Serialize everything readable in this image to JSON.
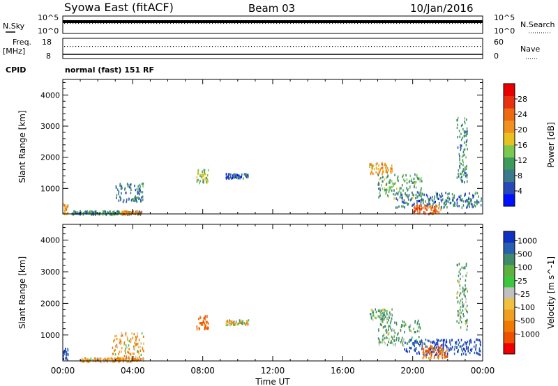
{
  "header": {
    "station": "Syowa East (fitACF)",
    "beam": "Beam 03",
    "date": "10/Jan/2016"
  },
  "status_panels": {
    "nsky_label": "N.Sky",
    "nsky_ticks": [
      "10^5",
      "10^0"
    ],
    "nsearch_label": "N.Search",
    "nsearch_ticks": [
      "10^5",
      "10^0"
    ],
    "freq_label": "Freq.",
    "freq_unit": "[MHz]",
    "freq_ticks": [
      "18",
      "8"
    ],
    "nave_label": "Nave",
    "nave_ticks": [
      "60",
      "0"
    ],
    "cpid_label": "CPID",
    "cpid_text": "normal (fast) 151 RF"
  },
  "colors": {
    "power_scale": [
      "#0010ff",
      "#2848b8",
      "#3a7a8a",
      "#3d9a5a",
      "#7ac850",
      "#e8c020",
      "#f09020",
      "#ee6a10",
      "#e83010",
      "#e80000"
    ],
    "velocity_scale": [
      "#ee0000",
      "#ee5000",
      "#f07a00",
      "#f0a020",
      "#f0c040",
      "#c0c0c0",
      "#3cc83c",
      "#60b040",
      "#3f8a6a",
      "#2860b0",
      "#1030c0"
    ]
  },
  "chart_data": [
    {
      "type": "heatmap",
      "title": "",
      "ylabel": "Slant Range [km]",
      "xlabel": "",
      "x_ticks": [
        "00:00",
        "04:00",
        "08:00",
        "12:00",
        "16:00",
        "20:00",
        "00:00"
      ],
      "y_ticks": [
        "1000",
        "2000",
        "3000",
        "4000"
      ],
      "ylim": [
        180,
        4500
      ],
      "xlim_hours": [
        0,
        24
      ],
      "colorbar_label": "Power [dB]",
      "colorbar_ticks": [
        "4",
        "8",
        "12",
        "16",
        "20",
        "24",
        "28"
      ],
      "colorbar_range": [
        0,
        32
      ],
      "clusters": [
        {
          "t": [
            0.0,
            0.3
          ],
          "r": [
            180,
            520
          ],
          "v": 20
        },
        {
          "t": [
            0.5,
            4.5
          ],
          "r": [
            190,
            300
          ],
          "v": 10
        },
        {
          "t": [
            3.3,
            4.5
          ],
          "r": [
            200,
            300
          ],
          "v": 22
        },
        {
          "t": [
            3.0,
            4.6
          ],
          "r": [
            600,
            1200
          ],
          "v": 8
        },
        {
          "t": [
            7.6,
            8.3
          ],
          "r": [
            1200,
            1650
          ],
          "v": 14
        },
        {
          "t": [
            9.3,
            10.6
          ],
          "r": [
            1350,
            1500
          ],
          "v": 6
        },
        {
          "t": [
            17.5,
            18.8
          ],
          "r": [
            1500,
            1850
          ],
          "v": 20
        },
        {
          "t": [
            18.0,
            20.5
          ],
          "r": [
            700,
            1500
          ],
          "v": 12
        },
        {
          "t": [
            19.0,
            23.9
          ],
          "r": [
            400,
            900
          ],
          "v": 8
        },
        {
          "t": [
            20.0,
            21.6
          ],
          "r": [
            200,
            500
          ],
          "v": 24
        },
        {
          "t": [
            22.5,
            23.1
          ],
          "r": [
            1200,
            3300
          ],
          "v": 10
        }
      ]
    },
    {
      "type": "heatmap",
      "title": "",
      "ylabel": "Slant Range [km]",
      "xlabel": "Time UT",
      "x_ticks": [
        "00:00",
        "04:00",
        "08:00",
        "12:00",
        "16:00",
        "20:00",
        "00:00"
      ],
      "y_ticks": [
        "1000",
        "2000",
        "3000",
        "4000"
      ],
      "ylim": [
        180,
        4500
      ],
      "xlim_hours": [
        0,
        24
      ],
      "colorbar_label": "Velocity [m s^-1]",
      "colorbar_ticks": [
        "-1000",
        "-500",
        "-100",
        "-25",
        "25",
        "100",
        "500",
        "1000"
      ],
      "clusters": [
        {
          "t": [
            0.0,
            0.3
          ],
          "r": [
            200,
            600
          ],
          "v": 500
        },
        {
          "t": [
            1.0,
            4.6
          ],
          "r": [
            190,
            300
          ],
          "v": -100
        },
        {
          "t": [
            2.8,
            4.6
          ],
          "r": [
            300,
            1100
          ],
          "v": -100
        },
        {
          "t": [
            7.6,
            8.3
          ],
          "r": [
            1200,
            1650
          ],
          "v": -500
        },
        {
          "t": [
            9.3,
            10.6
          ],
          "r": [
            1350,
            1500
          ],
          "v": -25
        },
        {
          "t": [
            17.5,
            18.8
          ],
          "r": [
            1500,
            1850
          ],
          "v": 100
        },
        {
          "t": [
            18.0,
            20.5
          ],
          "r": [
            700,
            1500
          ],
          "v": 100
        },
        {
          "t": [
            19.5,
            23.9
          ],
          "r": [
            400,
            900
          ],
          "v": 500
        },
        {
          "t": [
            20.5,
            22.0
          ],
          "r": [
            300,
            700
          ],
          "v": -500
        },
        {
          "t": [
            22.5,
            23.1
          ],
          "r": [
            1200,
            3300
          ],
          "v": 100
        }
      ]
    }
  ]
}
